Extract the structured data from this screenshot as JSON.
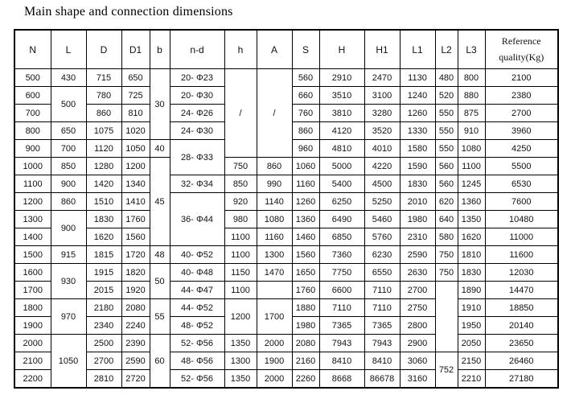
{
  "title": "Main shape and connection dimensions",
  "table": {
    "columns": [
      "N",
      "L",
      "D",
      "D1",
      "b",
      "n-d",
      "h",
      "A",
      "S",
      "H",
      "H1",
      "L1",
      "L2",
      "L3",
      "Reference\nquality(Kg)"
    ],
    "rows": [
      [
        [
          "500"
        ],
        [
          "430"
        ],
        [
          "715"
        ],
        [
          "650"
        ],
        [
          "30",
          4
        ],
        [
          "20- Φ23"
        ],
        [
          "/",
          5
        ],
        [
          "/",
          5
        ],
        [
          "560"
        ],
        [
          "2910"
        ],
        [
          "2470"
        ],
        [
          "1130"
        ],
        [
          "480"
        ],
        [
          "800"
        ],
        [
          "2100"
        ]
      ],
      [
        [
          "600"
        ],
        [
          "500",
          2
        ],
        [
          "780"
        ],
        [
          "725"
        ],
        [
          "20- Φ30"
        ],
        [
          "660"
        ],
        [
          "3510"
        ],
        [
          "3100"
        ],
        [
          "1240"
        ],
        [
          "520"
        ],
        [
          "880"
        ],
        [
          "2380"
        ]
      ],
      [
        [
          "700"
        ],
        [
          "860"
        ],
        [
          "810"
        ],
        [
          "24- Φ26"
        ],
        [
          "760"
        ],
        [
          "3810"
        ],
        [
          "3280"
        ],
        [
          "1260"
        ],
        [
          "550"
        ],
        [
          "875"
        ],
        [
          "2700"
        ]
      ],
      [
        [
          "800"
        ],
        [
          "650"
        ],
        [
          "1075"
        ],
        [
          "1020"
        ],
        [
          "24- Φ30"
        ],
        [
          "860"
        ],
        [
          "4120"
        ],
        [
          "3520"
        ],
        [
          "1330"
        ],
        [
          "550"
        ],
        [
          "910"
        ],
        [
          "3960"
        ]
      ],
      [
        [
          "900"
        ],
        [
          "700"
        ],
        [
          "1120"
        ],
        [
          "1050"
        ],
        [
          "40"
        ],
        [
          "28- Φ33",
          2
        ],
        [
          "960"
        ],
        [
          "4810"
        ],
        [
          "4010"
        ],
        [
          "1580"
        ],
        [
          "550"
        ],
        [
          "1080"
        ],
        [
          "4250"
        ]
      ],
      [
        [
          "1000"
        ],
        [
          "850"
        ],
        [
          "1280"
        ],
        [
          "1200"
        ],
        [
          "45",
          5
        ],
        [
          "750"
        ],
        [
          "860"
        ],
        [
          "1060"
        ],
        [
          "5000"
        ],
        [
          "4220"
        ],
        [
          "1590"
        ],
        [
          "560"
        ],
        [
          "1100"
        ],
        [
          "5500"
        ]
      ],
      [
        [
          "1100"
        ],
        [
          "900"
        ],
        [
          "1420"
        ],
        [
          "1340"
        ],
        [
          "32- Φ34"
        ],
        [
          "850"
        ],
        [
          "990"
        ],
        [
          "1160"
        ],
        [
          "5400"
        ],
        [
          "4500"
        ],
        [
          "1830"
        ],
        [
          "560"
        ],
        [
          "1245"
        ],
        [
          "6530"
        ]
      ],
      [
        [
          "1200"
        ],
        [
          "860"
        ],
        [
          "1510"
        ],
        [
          "1410"
        ],
        [
          "36- Φ44",
          3
        ],
        [
          "920"
        ],
        [
          "1140"
        ],
        [
          "1260"
        ],
        [
          "6250"
        ],
        [
          "5250"
        ],
        [
          "2010"
        ],
        [
          "620"
        ],
        [
          "1360"
        ],
        [
          "7600"
        ]
      ],
      [
        [
          "1300"
        ],
        [
          "900",
          2
        ],
        [
          "1830"
        ],
        [
          "1760"
        ],
        [
          "980"
        ],
        [
          "1080"
        ],
        [
          "1360"
        ],
        [
          "6490"
        ],
        [
          "5460"
        ],
        [
          "1980"
        ],
        [
          "640"
        ],
        [
          "1350"
        ],
        [
          "10480"
        ]
      ],
      [
        [
          "1400"
        ],
        [
          "1620"
        ],
        [
          "1560"
        ],
        [
          "1100"
        ],
        [
          "1160"
        ],
        [
          "1460"
        ],
        [
          "6850"
        ],
        [
          "5760"
        ],
        [
          "2310"
        ],
        [
          "580"
        ],
        [
          "1620"
        ],
        [
          "11000"
        ]
      ],
      [
        [
          "1500"
        ],
        [
          "915"
        ],
        [
          "1815"
        ],
        [
          "1720"
        ],
        [
          "48"
        ],
        [
          "40- Φ52"
        ],
        [
          "1100"
        ],
        [
          "1300"
        ],
        [
          "1560"
        ],
        [
          "7360"
        ],
        [
          "6230"
        ],
        [
          "2590"
        ],
        [
          "750"
        ],
        [
          "1810"
        ],
        [
          "11600"
        ]
      ],
      [
        [
          "1600"
        ],
        [
          "930",
          2
        ],
        [
          "1915"
        ],
        [
          "1820"
        ],
        [
          "50",
          2
        ],
        [
          "40- Φ48"
        ],
        [
          "1150"
        ],
        [
          "1470"
        ],
        [
          "1650"
        ],
        [
          "7750"
        ],
        [
          "6550"
        ],
        [
          "2630"
        ],
        [
          "750"
        ],
        [
          "1830"
        ],
        [
          "12030"
        ]
      ],
      [
        [
          "1700"
        ],
        [
          "2015"
        ],
        [
          "1920"
        ],
        [
          "44- Φ47"
        ],
        [
          "1100"
        ],
        [
          ""
        ],
        [
          "1760"
        ],
        [
          "6600"
        ],
        [
          "7110"
        ],
        [
          "2700"
        ],
        [
          "",
          4
        ],
        [
          "1890"
        ],
        [
          "14470"
        ]
      ],
      [
        [
          "1800"
        ],
        [
          "970",
          2
        ],
        [
          "2180"
        ],
        [
          "2080"
        ],
        [
          "55",
          2
        ],
        [
          "44- Φ52"
        ],
        [
          "1200",
          2
        ],
        [
          "1700",
          2
        ],
        [
          "1880"
        ],
        [
          "7110"
        ],
        [
          "7110"
        ],
        [
          "2750"
        ],
        [
          "1910"
        ],
        [
          "18850"
        ]
      ],
      [
        [
          "1900"
        ],
        [
          "2340"
        ],
        [
          "2240"
        ],
        [
          "48- Φ52"
        ],
        [
          "1980"
        ],
        [
          "7365"
        ],
        [
          "7365"
        ],
        [
          "2800"
        ],
        [
          "1950"
        ],
        [
          "20140"
        ]
      ],
      [
        [
          "2000"
        ],
        [
          "1050",
          3
        ],
        [
          "2500"
        ],
        [
          "2390"
        ],
        [
          "60",
          3
        ],
        [
          "52- Φ56"
        ],
        [
          "1350"
        ],
        [
          "2000"
        ],
        [
          "2080"
        ],
        [
          "7943"
        ],
        [
          "7943"
        ],
        [
          "2900"
        ],
        [
          "2050"
        ],
        [
          "23650"
        ]
      ],
      [
        [
          "2100"
        ],
        [
          "2700"
        ],
        [
          "2590"
        ],
        [
          "48- Φ56"
        ],
        [
          "1300"
        ],
        [
          "1900"
        ],
        [
          "2160"
        ],
        [
          "8410"
        ],
        [
          "8410"
        ],
        [
          "3060"
        ],
        [
          "752",
          2
        ],
        [
          "2150"
        ],
        [
          "26460"
        ]
      ],
      [
        [
          "2200"
        ],
        [
          "2810"
        ],
        [
          "2720"
        ],
        [
          "52- Φ56"
        ],
        [
          "1350"
        ],
        [
          "2000"
        ],
        [
          "2260"
        ],
        [
          "8668"
        ],
        [
          "86678"
        ],
        [
          "3160"
        ],
        [
          "2210"
        ],
        [
          "27180"
        ]
      ]
    ]
  }
}
